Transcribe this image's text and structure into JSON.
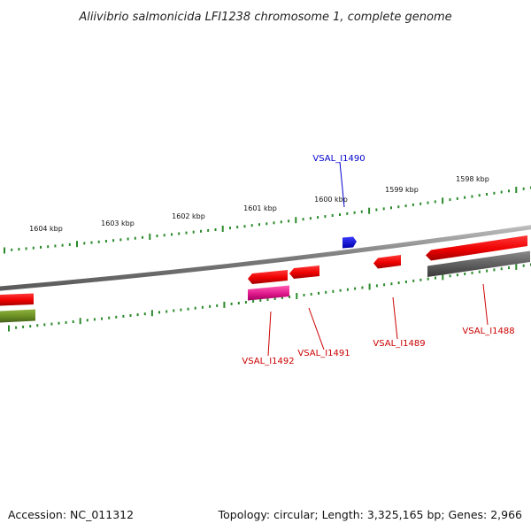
{
  "title": "Aliivibrio salmonicida LFI1238 chromosome 1, complete genome",
  "footer": {
    "accession": "Accession: NC_011312",
    "summary": "Topology: circular; Length: 3,325,165 bp; Genes: 2,966"
  },
  "colors": {
    "backbone": "#8a8a8a",
    "tick": "#2a8a2a",
    "forward_gene": "#0000dd",
    "reverse_gene": "#ee0000",
    "magenta_feature": "#e0198c",
    "grey_feature": "#5c5c5c",
    "olive_feature": "#6b8e23",
    "forward_label": "#0000cc",
    "reverse_label": "#cc0000"
  },
  "scale_labels": [
    "1604 kbp",
    "1603 kbp",
    "1602 kbp",
    "1601 kbp",
    "1600 kbp",
    "1599 kbp",
    "1598 kbp"
  ],
  "genes": [
    {
      "id": "VSAL_I1490",
      "strand": "forward"
    },
    {
      "id": "VSAL_I1492",
      "strand": "reverse"
    },
    {
      "id": "VSAL_I1491",
      "strand": "reverse"
    },
    {
      "id": "VSAL_I1489",
      "strand": "reverse"
    },
    {
      "id": "VSAL_I1488",
      "strand": "reverse"
    }
  ]
}
